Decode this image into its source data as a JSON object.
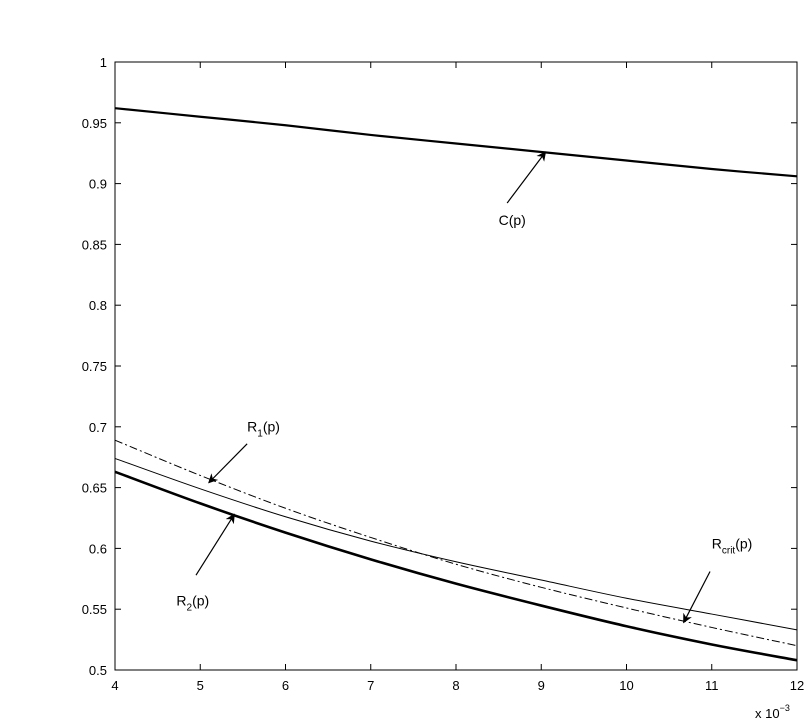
{
  "chart_data": {
    "type": "line",
    "title": "",
    "xlabel": "",
    "ylabel": "",
    "x_multiplier_label": "x 10",
    "x_multiplier_exponent": "−3",
    "xlim": [
      4,
      12
    ],
    "ylim": [
      0.5,
      1
    ],
    "x_ticks": [
      4,
      5,
      6,
      7,
      8,
      9,
      10,
      11,
      12
    ],
    "x_tick_labels": [
      "4",
      "5",
      "6",
      "7",
      "8",
      "9",
      "10",
      "11",
      "12"
    ],
    "y_ticks": [
      0.5,
      0.55,
      0.6,
      0.65,
      0.7,
      0.75,
      0.8,
      0.85,
      0.9,
      0.95,
      1
    ],
    "y_tick_labels": [
      "0.5",
      "0.55",
      "0.6",
      "0.65",
      "0.7",
      "0.75",
      "0.8",
      "0.85",
      "0.9",
      "0.95",
      "1"
    ],
    "grid": false,
    "x": [
      4,
      5,
      6,
      7,
      8,
      9,
      10,
      11,
      12
    ],
    "series": [
      {
        "key": "c",
        "values": [
          0.962,
          0.955,
          0.948,
          0.94,
          0.933,
          0.926,
          0.919,
          0.912,
          0.906
        ],
        "color": "#000000",
        "style": "solid-thick"
      },
      {
        "key": "r1",
        "values": [
          0.674,
          0.649,
          0.626,
          0.606,
          0.589,
          0.574,
          0.559,
          0.546,
          0.533
        ],
        "color": "#000000",
        "style": "solid-thin"
      },
      {
        "key": "rcrit",
        "values": [
          0.689,
          0.66,
          0.633,
          0.609,
          0.587,
          0.568,
          0.551,
          0.535,
          0.52
        ],
        "color": "#000000",
        "style": "dash-dot"
      },
      {
        "key": "r2",
        "values": [
          0.663,
          0.637,
          0.613,
          0.591,
          0.571,
          0.553,
          0.536,
          0.521,
          0.508
        ],
        "color": "#000000",
        "style": "solid-bold"
      }
    ],
    "annotations": [
      {
        "key": "c",
        "label_main": "C(p)",
        "label_sub": "",
        "label_rest": "",
        "label_at": [
          8.5,
          0.866
        ],
        "arrow_from": [
          8.6,
          0.884
        ],
        "arrow_to": [
          9.05,
          0.926
        ]
      },
      {
        "key": "r1",
        "label_main": "R",
        "label_sub": "1",
        "label_rest": "(p)",
        "label_at": [
          5.55,
          0.696
        ],
        "arrow_from": [
          5.55,
          0.686
        ],
        "arrow_to": [
          5.1,
          0.654
        ]
      },
      {
        "key": "r2",
        "label_main": "R",
        "label_sub": "2",
        "label_rest": "(p)",
        "label_at": [
          4.72,
          0.553
        ],
        "arrow_from": [
          4.95,
          0.578
        ],
        "arrow_to": [
          5.4,
          0.628
        ]
      },
      {
        "key": "rcrit",
        "label_main": "R",
        "label_sub": "crit",
        "label_rest": "(p)",
        "label_at": [
          11.0,
          0.6
        ],
        "arrow_from": [
          10.98,
          0.581
        ],
        "arrow_to": [
          10.67,
          0.539
        ]
      }
    ]
  }
}
